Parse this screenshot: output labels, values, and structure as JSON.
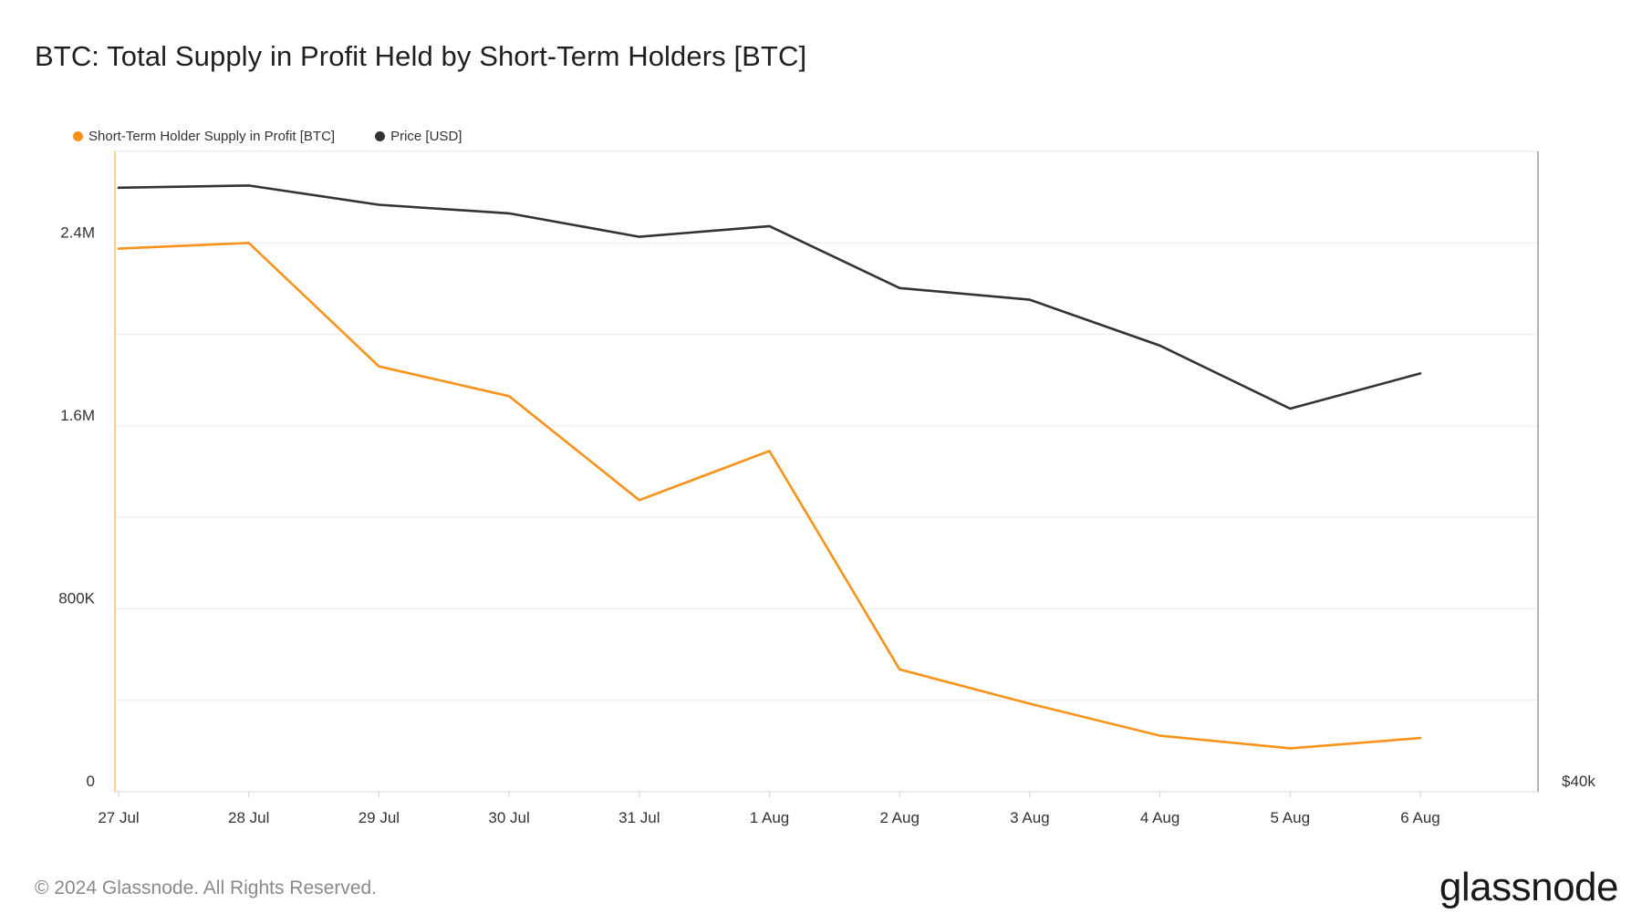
{
  "title": "BTC: Total Supply in Profit Held by Short-Term Holders [BTC]",
  "legend": [
    {
      "label": "Short-Term Holder Supply in Profit [BTC]",
      "color": "#f7931a"
    },
    {
      "label": "Price [USD]",
      "color": "#333333"
    }
  ],
  "footer": "© 2024 Glassnode. All Rights Reserved.",
  "logo": "glassnode",
  "chart_data": {
    "type": "line",
    "title": "BTC: Total Supply in Profit Held by Short-Term Holders [BTC]",
    "categories": [
      "27 Jul",
      "28 Jul",
      "29 Jul",
      "30 Jul",
      "31 Jul",
      "1 Aug",
      "2 Aug",
      "3 Aug",
      "4 Aug",
      "5 Aug",
      "6 Aug"
    ],
    "y_left": {
      "ticks": [
        {
          "value": 0,
          "label": "0"
        },
        {
          "value": 800000,
          "label": "800K"
        },
        {
          "value": 1600000,
          "label": "1.6M"
        },
        {
          "value": 2400000,
          "label": "2.4M"
        }
      ],
      "ylim": [
        0,
        2800000
      ]
    },
    "y_right": {
      "ticks": [
        {
          "value": 40000,
          "label": "$40k"
        }
      ],
      "ylim": [
        40000,
        70000
      ]
    },
    "grid": true,
    "legend_position": "top-left",
    "series": [
      {
        "name": "Short-Term Holder Supply in Profit [BTC]",
        "color": "#f7931a",
        "axis": "left",
        "values": [
          2375000,
          2400000,
          1860000,
          1730000,
          1275000,
          1490000,
          535000,
          385000,
          245000,
          190000,
          235000
        ]
      },
      {
        "name": "Price [USD]",
        "color": "#333333",
        "axis": "right",
        "values": [
          68300,
          68400,
          67500,
          67100,
          66000,
          66500,
          63600,
          63050,
          60900,
          57950,
          59600
        ]
      }
    ]
  }
}
